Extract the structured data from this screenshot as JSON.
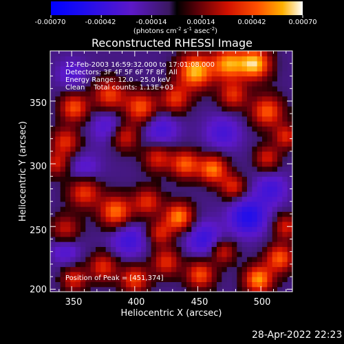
{
  "chart_data": {
    "type": "heatmap",
    "title": "Reconstructed RHESSI Image",
    "xlabel": "Heliocentric X (arcsec)",
    "ylabel": "Heliocentric Y (arcsec)",
    "xlim": [
      333,
      525
    ],
    "ylim": [
      198,
      390
    ],
    "x_ticks": [
      350,
      400,
      450,
      500
    ],
    "y_ticks": [
      200,
      250,
      300,
      350
    ],
    "annotations": [
      "12-Feb-2003 16:59:32.000 to 17:01:08.000",
      "Detectors: 3F 4F 5F 6F 7F 8F, All",
      "Energy Range: 12.0 - 25.0 keV",
      "Clean    Total counts: 1.13E+03"
    ],
    "peak_label": "Position of Peak = [451,374]",
    "peak": [
      451,
      374
    ],
    "colorbar": {
      "min": -0.0007,
      "max": 0.0007,
      "tick_labels": [
        "-0.00070",
        "-0.00042",
        "-0.00014",
        "0.00014",
        "0.00042",
        "0.00070"
      ],
      "unit_main": "(photons cm",
      "unit_sup1": "-2",
      "unit_mid": " s",
      "unit_sup2": "-1",
      "unit_tail": " asec",
      "unit_sup3": "-2",
      "unit_end": ")"
    },
    "sources": [
      {
        "x": 352,
        "y": 345,
        "v": 0.00048,
        "s": 8
      },
      {
        "x": 345,
        "y": 318,
        "v": 0.0004,
        "s": 8
      },
      {
        "x": 338,
        "y": 300,
        "v": 0.00034,
        "s": 7
      },
      {
        "x": 380,
        "y": 355,
        "v": 0.00045,
        "s": 9
      },
      {
        "x": 405,
        "y": 345,
        "v": 0.0005,
        "s": 9
      },
      {
        "x": 432,
        "y": 352,
        "v": 0.00042,
        "s": 8
      },
      {
        "x": 448,
        "y": 374,
        "v": 0.00066,
        "s": 10
      },
      {
        "x": 474,
        "y": 380,
        "v": 0.00058,
        "s": 9
      },
      {
        "x": 495,
        "y": 380,
        "v": 0.00068,
        "s": 9
      },
      {
        "x": 478,
        "y": 355,
        "v": 0.0004,
        "s": 8
      },
      {
        "x": 505,
        "y": 342,
        "v": 0.0005,
        "s": 9
      },
      {
        "x": 520,
        "y": 322,
        "v": 0.00038,
        "s": 7
      },
      {
        "x": 505,
        "y": 305,
        "v": 0.00036,
        "s": 7
      },
      {
        "x": 392,
        "y": 322,
        "v": 0.0004,
        "s": 8
      },
      {
        "x": 418,
        "y": 305,
        "v": 0.00038,
        "s": 8
      },
      {
        "x": 440,
        "y": 300,
        "v": 0.0005,
        "s": 8
      },
      {
        "x": 462,
        "y": 296,
        "v": 0.00056,
        "s": 8
      },
      {
        "x": 478,
        "y": 282,
        "v": 0.00038,
        "s": 7
      },
      {
        "x": 360,
        "y": 278,
        "v": 0.00045,
        "s": 9
      },
      {
        "x": 385,
        "y": 262,
        "v": 0.00055,
        "s": 9
      },
      {
        "x": 410,
        "y": 270,
        "v": 0.0004,
        "s": 8
      },
      {
        "x": 435,
        "y": 258,
        "v": 0.00058,
        "s": 8
      },
      {
        "x": 420,
        "y": 245,
        "v": 0.00036,
        "s": 7
      },
      {
        "x": 345,
        "y": 248,
        "v": 0.00034,
        "s": 8
      },
      {
        "x": 520,
        "y": 250,
        "v": 0.00036,
        "s": 7
      },
      {
        "x": 515,
        "y": 225,
        "v": 0.0005,
        "s": 8
      },
      {
        "x": 498,
        "y": 208,
        "v": 0.0006,
        "s": 8
      },
      {
        "x": 470,
        "y": 230,
        "v": 0.00036,
        "s": 7
      },
      {
        "x": 452,
        "y": 212,
        "v": 0.00048,
        "s": 8
      },
      {
        "x": 425,
        "y": 222,
        "v": 0.0004,
        "s": 8
      },
      {
        "x": 400,
        "y": 208,
        "v": 0.00045,
        "s": 8
      },
      {
        "x": 375,
        "y": 218,
        "v": 0.0004,
        "s": 8
      },
      {
        "x": 352,
        "y": 208,
        "v": 0.00038,
        "s": 7
      },
      {
        "x": 380,
        "y": 330,
        "v": -0.00022,
        "s": 10
      },
      {
        "x": 360,
        "y": 295,
        "v": -0.0002,
        "s": 9
      },
      {
        "x": 420,
        "y": 328,
        "v": -0.00024,
        "s": 10
      },
      {
        "x": 470,
        "y": 325,
        "v": -0.00022,
        "s": 10
      },
      {
        "x": 490,
        "y": 258,
        "v": -0.0004,
        "s": 10
      },
      {
        "x": 455,
        "y": 240,
        "v": -0.00028,
        "s": 10
      },
      {
        "x": 395,
        "y": 240,
        "v": -0.00026,
        "s": 10
      },
      {
        "x": 345,
        "y": 232,
        "v": -0.0002,
        "s": 8
      },
      {
        "x": 508,
        "y": 280,
        "v": -0.00024,
        "s": 9
      },
      {
        "x": 350,
        "y": 372,
        "v": -0.00018,
        "s": 8
      }
    ]
  },
  "footer": {
    "timestamp": "28-Apr-2022 22:23"
  }
}
